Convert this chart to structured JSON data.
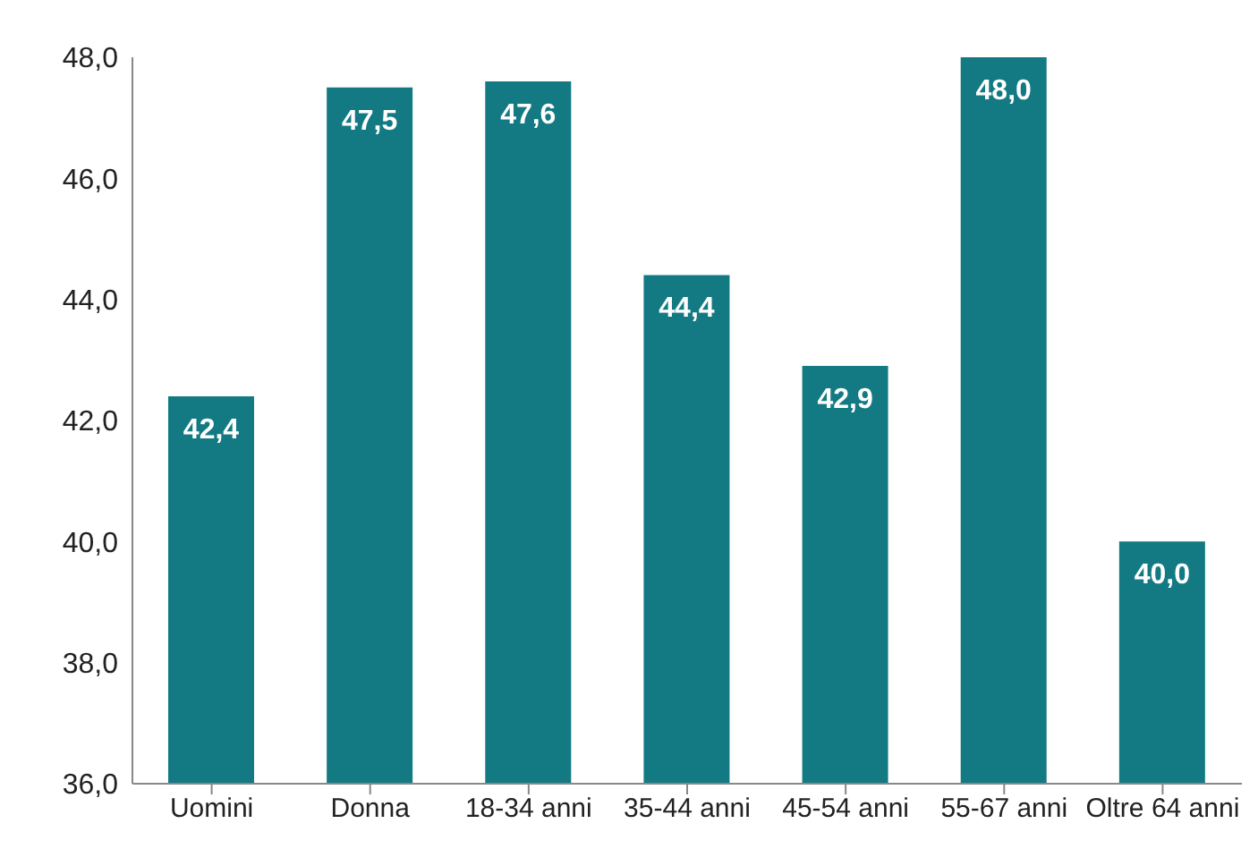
{
  "chart_data": {
    "type": "bar",
    "categories": [
      "Uomini",
      "Donna",
      "18-34 anni",
      "35-44 anni",
      "45-54 anni",
      "55-67 anni",
      "Oltre 64 anni"
    ],
    "values": [
      42.4,
      47.5,
      47.6,
      44.4,
      42.9,
      48.0,
      40.0
    ],
    "value_labels": [
      "42,4",
      "47,5",
      "47,6",
      "44,4",
      "42,9",
      "48,0",
      "40,0"
    ],
    "color": "#137a83",
    "ylim": [
      36,
      48
    ],
    "yticks": [
      {
        "value": 36,
        "label": "36,0"
      },
      {
        "value": 38,
        "label": "38,0"
      },
      {
        "value": 40,
        "label": "40,0"
      },
      {
        "value": 42,
        "label": "42,0"
      },
      {
        "value": 44,
        "label": "44,0"
      },
      {
        "value": 46,
        "label": "46,0"
      },
      {
        "value": 48,
        "label": "48,0"
      }
    ],
    "grid": false,
    "legend": false
  }
}
